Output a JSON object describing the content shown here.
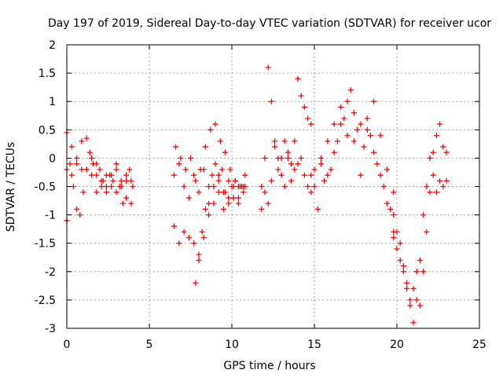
{
  "chart_data": {
    "type": "scatter",
    "title": "Day 197 of 2019, Sidereal Day-to-day VTEC variation (SDTVAR) for receiver ucor",
    "xlabel": "GPS time / hours",
    "ylabel": "SDTVAR / TECUs",
    "xlim": [
      0,
      25
    ],
    "ylim": [
      -3,
      2
    ],
    "xticks": [
      0,
      5,
      10,
      15,
      20,
      25
    ],
    "xtick_labels": [
      "0",
      "5",
      "10",
      "15",
      "20",
      "25"
    ],
    "yticks": [
      -3,
      -2.5,
      -2,
      -1.5,
      -1,
      -0.5,
      0,
      0.5,
      1,
      1.5,
      2
    ],
    "ytick_labels": [
      "-3",
      "-2.5",
      "-2",
      "-1.5",
      "-1",
      "-0.5",
      "0",
      "0.5",
      "1",
      "1.5",
      "2"
    ],
    "grid": true,
    "marker": "+",
    "series": [
      {
        "name": "SDTVAR",
        "color": "#ff0000",
        "tracks": [
          {
            "x": [
              0.0,
              0.2,
              0.4,
              0.6,
              0.8,
              1.0,
              1.2,
              1.4,
              1.6,
              1.8,
              2.0,
              2.2,
              2.4,
              2.6,
              2.8,
              3.0,
              3.2,
              3.4,
              3.6,
              3.8,
              4.0
            ],
            "y": [
              0.45,
              -0.1,
              -0.5,
              -0.9,
              -1.0,
              -0.6,
              -0.2,
              0.1,
              -0.1,
              -0.3,
              -0.2,
              -0.4,
              -0.5,
              -0.3,
              -0.4,
              -0.6,
              -0.5,
              -0.8,
              -0.4,
              -0.2,
              -0.5
            ]
          },
          {
            "x": [
              0.0,
              0.3,
              0.6,
              0.9,
              1.2,
              1.5,
              1.8,
              2.1,
              2.4,
              2.7,
              3.0,
              3.3,
              3.6,
              3.9
            ],
            "y": [
              -1.1,
              -0.3,
              0.0,
              -0.2,
              0.35,
              0.0,
              -0.6,
              -0.5,
              -0.3,
              -0.5,
              -0.2,
              -0.4,
              -0.3,
              -0.4
            ]
          },
          {
            "x": [
              0.0,
              0.3,
              0.6,
              0.9,
              1.2,
              1.5,
              1.8,
              2.1,
              2.4,
              2.7,
              3.0,
              3.3,
              3.6,
              3.9
            ],
            "y": [
              -0.2,
              0.2,
              -0.1,
              0.3,
              -0.2,
              -0.3,
              -0.1,
              -0.4,
              -0.6,
              -0.3,
              -0.1,
              -0.5,
              -0.7,
              -0.8
            ]
          },
          {
            "x": [
              6.5,
              6.8,
              7.1,
              7.4,
              7.7,
              8.0,
              8.3,
              8.6,
              8.9,
              9.2,
              9.5,
              9.8,
              10.1,
              10.4,
              10.7
            ],
            "y": [
              -0.3,
              -0.1,
              -0.5,
              -0.7,
              -0.3,
              -0.6,
              -0.2,
              -0.8,
              -0.5,
              -0.3,
              -0.6,
              -0.4,
              -0.7,
              -0.5,
              -0.5
            ]
          },
          {
            "x": [
              6.6,
              6.9,
              7.2,
              7.5,
              7.8,
              8.1,
              8.4,
              8.7,
              9.0,
              9.3,
              9.6,
              9.9,
              10.2,
              10.5,
              10.8
            ],
            "y": [
              0.2,
              0.0,
              -0.2,
              0.0,
              -0.4,
              -0.2,
              0.2,
              0.5,
              0.6,
              0.3,
              0.1,
              -0.2,
              -0.4,
              -0.5,
              -0.3
            ]
          },
          {
            "x": [
              6.5,
              6.8,
              7.1,
              7.4,
              7.7,
              8.0,
              8.3,
              8.6,
              8.9,
              9.2,
              9.5,
              9.8,
              10.1,
              10.4,
              10.7
            ],
            "y": [
              -1.2,
              -1.5,
              -1.3,
              -1.4,
              -1.5,
              -1.7,
              -1.4,
              -1.0,
              -0.8,
              -0.6,
              -0.9,
              -0.7,
              -0.5,
              -0.8,
              -0.6
            ]
          },
          {
            "x": [
              7.8,
              8.0,
              8.2,
              8.4,
              8.6,
              8.8,
              9.0,
              9.2,
              9.4,
              9.6,
              9.8,
              10.0,
              10.2,
              10.4,
              10.6,
              10.8
            ],
            "y": [
              -2.2,
              -1.8,
              -1.3,
              -0.9,
              -0.5,
              -0.3,
              -0.1,
              -0.4,
              -0.2,
              -0.6,
              -0.8,
              -0.5,
              -0.4,
              -0.7,
              -0.5,
              -0.5
            ]
          },
          {
            "x": [
              11.8,
              12.0,
              12.2,
              12.4,
              12.6,
              12.8,
              13.0,
              13.2,
              13.4,
              13.6,
              13.8,
              14.0,
              14.2,
              14.4,
              14.6,
              14.8
            ],
            "y": [
              -0.5,
              0.0,
              1.6,
              1.0,
              0.2,
              -0.2,
              0.0,
              0.3,
              0.1,
              -0.1,
              0.3,
              1.4,
              1.1,
              0.9,
              0.7,
              0.6
            ]
          },
          {
            "x": [
              11.8,
              12.0,
              12.2,
              12.4,
              12.6,
              12.8,
              13.0,
              13.2,
              13.4,
              13.6,
              13.8,
              14.0,
              14.2,
              14.4,
              14.6,
              14.8
            ],
            "y": [
              -0.9,
              -0.6,
              -0.8,
              -0.4,
              0.3,
              0.0,
              -0.3,
              -0.5,
              0.0,
              -0.4,
              -0.2,
              -0.1,
              0.0,
              -0.3,
              -0.5,
              -0.3
            ]
          },
          {
            "x": [
              15.0,
              15.4,
              15.8,
              16.2,
              16.6,
              17.0,
              17.4,
              17.8,
              18.2,
              18.6,
              19.0,
              19.4,
              19.8
            ],
            "y": [
              -0.2,
              0.0,
              0.3,
              0.6,
              0.9,
              1.0,
              0.8,
              0.6,
              0.5,
              0.1,
              -0.3,
              -0.8,
              -1.3
            ]
          },
          {
            "x": [
              14.8,
              15.2,
              15.6,
              16.0,
              16.4,
              16.8,
              17.2,
              17.6,
              18.0,
              18.4,
              18.8,
              19.2,
              19.6
            ],
            "y": [
              -0.6,
              -0.9,
              -0.4,
              -0.2,
              0.3,
              0.7,
              1.2,
              0.5,
              0.2,
              0.4,
              -0.1,
              -0.5,
              -0.9
            ]
          },
          {
            "x": [
              15.0,
              15.4,
              15.8,
              16.2,
              16.6,
              17.0,
              17.4,
              17.8,
              18.2,
              18.6,
              19.0,
              19.4,
              19.8
            ],
            "y": [
              -0.5,
              -0.1,
              -0.3,
              0.1,
              0.6,
              0.4,
              0.3,
              -0.3,
              0.7,
              1.0,
              0.4,
              -0.2,
              -0.6
            ]
          },
          {
            "x": [
              19.8,
              20.0,
              20.2,
              20.4,
              20.6,
              20.8,
              21.0,
              21.2,
              21.4,
              21.6,
              21.8,
              22.0,
              22.2,
              22.4,
              22.6,
              22.8,
              23.0
            ],
            "y": [
              -1.4,
              -1.6,
              -1.8,
              -2.0,
              -2.3,
              -2.6,
              -2.9,
              -2.5,
              -1.8,
              -1.0,
              -0.5,
              0.0,
              -0.3,
              -0.6,
              -0.4,
              -0.5,
              -0.4
            ]
          },
          {
            "x": [
              19.8,
              20.0,
              20.2,
              20.4,
              20.6,
              20.8,
              21.0,
              21.2,
              21.4,
              21.6,
              21.8,
              22.0,
              22.2,
              22.4,
              22.6,
              22.8,
              23.0
            ],
            "y": [
              -1.0,
              -1.3,
              -1.5,
              -1.9,
              -2.2,
              -2.5,
              -2.3,
              -2.0,
              -2.6,
              -2.0,
              -1.3,
              -0.6,
              0.1,
              0.4,
              0.6,
              0.2,
              0.1
            ]
          }
        ]
      }
    ]
  }
}
